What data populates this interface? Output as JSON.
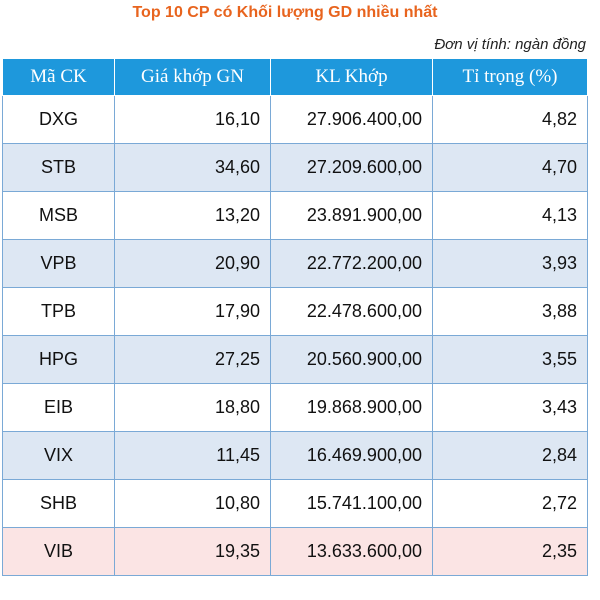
{
  "title": "Top 10 CP có Khối lượng GD nhiều nhất",
  "unit_note": "Đơn vị tính: ngàn đồng",
  "headers": [
    "Mã CK",
    "Giá khớp GN",
    "KL Khớp",
    "Tỉ trọng (%)"
  ],
  "rows": [
    {
      "code": "DXG",
      "price": "16,10",
      "volume": "27.906.400,00",
      "share": "4,82"
    },
    {
      "code": "STB",
      "price": "34,60",
      "volume": "27.209.600,00",
      "share": "4,70"
    },
    {
      "code": "MSB",
      "price": "13,20",
      "volume": "23.891.900,00",
      "share": "4,13"
    },
    {
      "code": "VPB",
      "price": "20,90",
      "volume": "22.772.200,00",
      "share": "3,93"
    },
    {
      "code": "TPB",
      "price": "17,90",
      "volume": "22.478.600,00",
      "share": "3,88"
    },
    {
      "code": "HPG",
      "price": "27,25",
      "volume": "20.560.900,00",
      "share": "3,55"
    },
    {
      "code": "EIB",
      "price": "18,80",
      "volume": "19.868.900,00",
      "share": "3,43"
    },
    {
      "code": "VIX",
      "price": "11,45",
      "volume": "16.469.900,00",
      "share": "2,84"
    },
    {
      "code": "SHB",
      "price": "10,80",
      "volume": "15.741.100,00",
      "share": "2,72"
    },
    {
      "code": "VIB",
      "price": "19,35",
      "volume": "13.633.600,00",
      "share": "2,35"
    }
  ],
  "chart_data": {
    "type": "table",
    "title": "Top 10 CP có Khối lượng GD nhiều nhất",
    "columns": [
      "Mã CK",
      "Giá khớp GN",
      "KL Khớp",
      "Tỉ trọng (%)"
    ],
    "categories": [
      "DXG",
      "STB",
      "MSB",
      "VPB",
      "TPB",
      "HPG",
      "EIB",
      "VIX",
      "SHB",
      "VIB"
    ],
    "series": [
      {
        "name": "Giá khớp GN",
        "values": [
          16.1,
          34.6,
          13.2,
          20.9,
          17.9,
          27.25,
          18.8,
          11.45,
          10.8,
          19.35
        ]
      },
      {
        "name": "KL Khớp",
        "values": [
          27906400,
          27209600,
          23891900,
          22772200,
          22478600,
          20560900,
          19868900,
          16469900,
          15741100,
          13633600
        ]
      },
      {
        "name": "Tỉ trọng (%)",
        "values": [
          4.82,
          4.7,
          4.13,
          3.93,
          3.88,
          3.55,
          3.43,
          2.84,
          2.72,
          2.35
        ]
      }
    ]
  },
  "colors": {
    "title": "#e8641e",
    "header_bg": "#1e98dc",
    "row_alt": "#dde7f3",
    "row_last": "#fbe4e4"
  }
}
